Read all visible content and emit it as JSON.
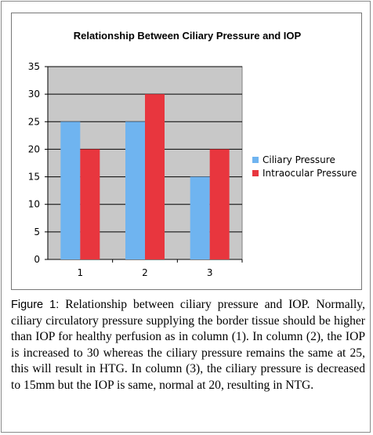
{
  "chart_data": {
    "type": "bar",
    "title": "Relationship Between Ciliary Pressure and IOP",
    "categories": [
      "1",
      "2",
      "3"
    ],
    "series": [
      {
        "name": "Ciliary Pressure",
        "values": [
          25,
          25,
          15
        ],
        "color": "#6fb4f0"
      },
      {
        "name": "Intraocular Pressure",
        "values": [
          20,
          30,
          20
        ],
        "color": "#e8363e"
      }
    ],
    "ylim": [
      0,
      35
    ],
    "yticks": [
      0,
      5,
      10,
      15,
      20,
      25,
      30,
      35
    ],
    "grid": true,
    "legend_position": "right",
    "plot_background": "#c8c8c8"
  },
  "caption": {
    "label": "Figure 1:",
    "text": " Relationship between ciliary pressure and IOP. Normally, ciliary circulatory pressure supplying the border tissue should be higher than IOP for healthy perfusion as in column (1). In column (2), the IOP is increased to 30 whereas the ciliary pressure remains the same at 25, this will result in HTG. In column (3), the ciliary pressure is decreased to 15mm but the IOP is same, normal at 20, resulting in NTG."
  }
}
